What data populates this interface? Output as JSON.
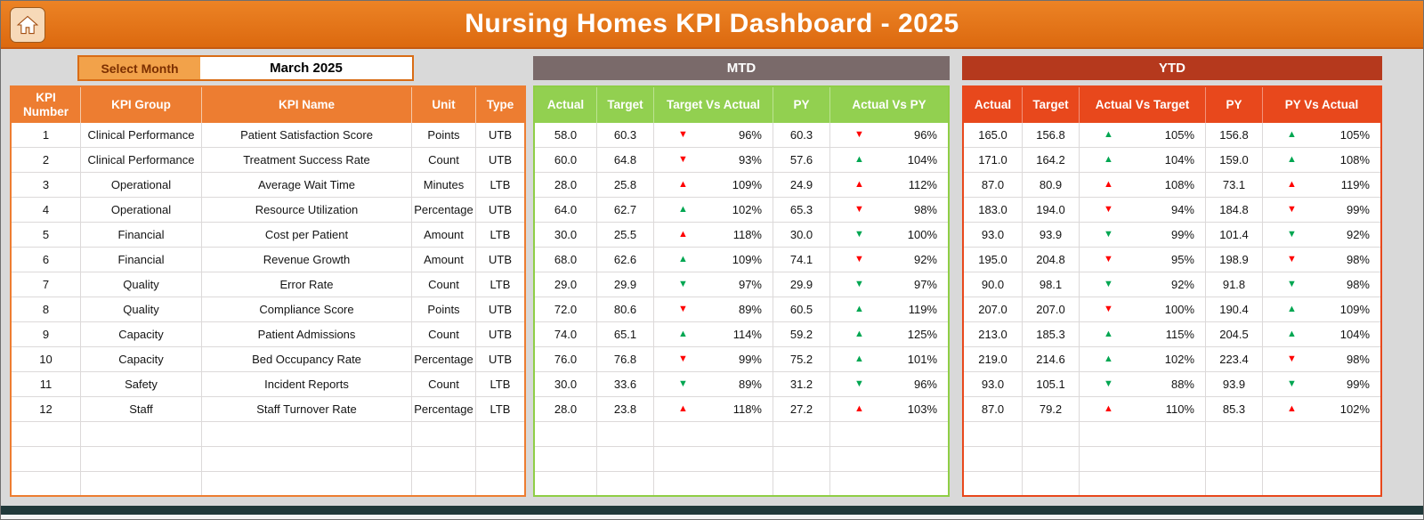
{
  "titlebar": {
    "title": "Nursing Homes KPI Dashboard - 2025"
  },
  "controls": {
    "select_month_label": "Select Month",
    "month_value": "March 2025"
  },
  "left_table": {
    "headers": [
      "KPI Number",
      "KPI Group",
      "KPI Name",
      "Unit",
      "Type"
    ]
  },
  "mtd": {
    "band": "MTD",
    "headers": [
      "Actual",
      "Target",
      "Target Vs Actual",
      "PY",
      "Actual Vs PY"
    ]
  },
  "ytd": {
    "band": "YTD",
    "headers": [
      "Actual",
      "Target",
      "Actual Vs Target",
      "PY",
      "PY Vs Actual"
    ]
  },
  "empty_rows": 3,
  "colors": {
    "titlebar_orange": "#E2701A",
    "header_orange": "#ED7D31",
    "mtd_band": "#7A6A6A",
    "mtd_header_green": "#92D050",
    "ytd_band": "#B5391D",
    "ytd_header_red": "#E8481C",
    "arrow_green": "#00A651",
    "arrow_red": "#FF0000",
    "background_gray": "#D9D9D9"
  },
  "rows": [
    {
      "n": "1",
      "group": "Clinical Performance",
      "name": "Patient Satisfaction Score",
      "unit": "Points",
      "type": "UTB",
      "mtd": {
        "actual": "58.0",
        "target": "60.3",
        "tva": {
          "d": "down",
          "c": "red",
          "p": "96%"
        },
        "py": "60.3",
        "avp": {
          "d": "down",
          "c": "red",
          "p": "96%"
        }
      },
      "ytd": {
        "actual": "165.0",
        "target": "156.8",
        "avt": {
          "d": "up",
          "c": "green",
          "p": "105%"
        },
        "py": "156.8",
        "pva": {
          "d": "up",
          "c": "green",
          "p": "105%"
        }
      }
    },
    {
      "n": "2",
      "group": "Clinical Performance",
      "name": "Treatment Success Rate",
      "unit": "Count",
      "type": "UTB",
      "mtd": {
        "actual": "60.0",
        "target": "64.8",
        "tva": {
          "d": "down",
          "c": "red",
          "p": "93%"
        },
        "py": "57.6",
        "avp": {
          "d": "up",
          "c": "green",
          "p": "104%"
        }
      },
      "ytd": {
        "actual": "171.0",
        "target": "164.2",
        "avt": {
          "d": "up",
          "c": "green",
          "p": "104%"
        },
        "py": "159.0",
        "pva": {
          "d": "up",
          "c": "green",
          "p": "108%"
        }
      }
    },
    {
      "n": "3",
      "group": "Operational",
      "name": "Average Wait Time",
      "unit": "Minutes",
      "type": "LTB",
      "mtd": {
        "actual": "28.0",
        "target": "25.8",
        "tva": {
          "d": "up",
          "c": "red",
          "p": "109%"
        },
        "py": "24.9",
        "avp": {
          "d": "up",
          "c": "red",
          "p": "112%"
        }
      },
      "ytd": {
        "actual": "87.0",
        "target": "80.9",
        "avt": {
          "d": "up",
          "c": "red",
          "p": "108%"
        },
        "py": "73.1",
        "pva": {
          "d": "up",
          "c": "red",
          "p": "119%"
        }
      }
    },
    {
      "n": "4",
      "group": "Operational",
      "name": "Resource Utilization",
      "unit": "Percentage",
      "type": "UTB",
      "mtd": {
        "actual": "64.0",
        "target": "62.7",
        "tva": {
          "d": "up",
          "c": "green",
          "p": "102%"
        },
        "py": "65.3",
        "avp": {
          "d": "down",
          "c": "red",
          "p": "98%"
        }
      },
      "ytd": {
        "actual": "183.0",
        "target": "194.0",
        "avt": {
          "d": "down",
          "c": "red",
          "p": "94%"
        },
        "py": "184.8",
        "pva": {
          "d": "down",
          "c": "red",
          "p": "99%"
        }
      }
    },
    {
      "n": "5",
      "group": "Financial",
      "name": "Cost per Patient",
      "unit": "Amount",
      "type": "LTB",
      "mtd": {
        "actual": "30.0",
        "target": "25.5",
        "tva": {
          "d": "up",
          "c": "red",
          "p": "118%"
        },
        "py": "30.0",
        "avp": {
          "d": "down",
          "c": "green",
          "p": "100%"
        }
      },
      "ytd": {
        "actual": "93.0",
        "target": "93.9",
        "avt": {
          "d": "down",
          "c": "green",
          "p": "99%"
        },
        "py": "101.4",
        "pva": {
          "d": "down",
          "c": "green",
          "p": "92%"
        }
      }
    },
    {
      "n": "6",
      "group": "Financial",
      "name": "Revenue Growth",
      "unit": "Amount",
      "type": "UTB",
      "mtd": {
        "actual": "68.0",
        "target": "62.6",
        "tva": {
          "d": "up",
          "c": "green",
          "p": "109%"
        },
        "py": "74.1",
        "avp": {
          "d": "down",
          "c": "red",
          "p": "92%"
        }
      },
      "ytd": {
        "actual": "195.0",
        "target": "204.8",
        "avt": {
          "d": "down",
          "c": "red",
          "p": "95%"
        },
        "py": "198.9",
        "pva": {
          "d": "down",
          "c": "red",
          "p": "98%"
        }
      }
    },
    {
      "n": "7",
      "group": "Quality",
      "name": "Error Rate",
      "unit": "Count",
      "type": "LTB",
      "mtd": {
        "actual": "29.0",
        "target": "29.9",
        "tva": {
          "d": "down",
          "c": "green",
          "p": "97%"
        },
        "py": "29.9",
        "avp": {
          "d": "down",
          "c": "green",
          "p": "97%"
        }
      },
      "ytd": {
        "actual": "90.0",
        "target": "98.1",
        "avt": {
          "d": "down",
          "c": "green",
          "p": "92%"
        },
        "py": "91.8",
        "pva": {
          "d": "down",
          "c": "green",
          "p": "98%"
        }
      }
    },
    {
      "n": "8",
      "group": "Quality",
      "name": "Compliance Score",
      "unit": "Points",
      "type": "UTB",
      "mtd": {
        "actual": "72.0",
        "target": "80.6",
        "tva": {
          "d": "down",
          "c": "red",
          "p": "89%"
        },
        "py": "60.5",
        "avp": {
          "d": "up",
          "c": "green",
          "p": "119%"
        }
      },
      "ytd": {
        "actual": "207.0",
        "target": "207.0",
        "avt": {
          "d": "down",
          "c": "red",
          "p": "100%"
        },
        "py": "190.4",
        "pva": {
          "d": "up",
          "c": "green",
          "p": "109%"
        }
      }
    },
    {
      "n": "9",
      "group": "Capacity",
      "name": "Patient Admissions",
      "unit": "Count",
      "type": "UTB",
      "mtd": {
        "actual": "74.0",
        "target": "65.1",
        "tva": {
          "d": "up",
          "c": "green",
          "p": "114%"
        },
        "py": "59.2",
        "avp": {
          "d": "up",
          "c": "green",
          "p": "125%"
        }
      },
      "ytd": {
        "actual": "213.0",
        "target": "185.3",
        "avt": {
          "d": "up",
          "c": "green",
          "p": "115%"
        },
        "py": "204.5",
        "pva": {
          "d": "up",
          "c": "green",
          "p": "104%"
        }
      }
    },
    {
      "n": "10",
      "group": "Capacity",
      "name": "Bed Occupancy Rate",
      "unit": "Percentage",
      "type": "UTB",
      "mtd": {
        "actual": "76.0",
        "target": "76.8",
        "tva": {
          "d": "down",
          "c": "red",
          "p": "99%"
        },
        "py": "75.2",
        "avp": {
          "d": "up",
          "c": "green",
          "p": "101%"
        }
      },
      "ytd": {
        "actual": "219.0",
        "target": "214.6",
        "avt": {
          "d": "up",
          "c": "green",
          "p": "102%"
        },
        "py": "223.4",
        "pva": {
          "d": "down",
          "c": "red",
          "p": "98%"
        }
      }
    },
    {
      "n": "11",
      "group": "Safety",
      "name": "Incident Reports",
      "unit": "Count",
      "type": "LTB",
      "mtd": {
        "actual": "30.0",
        "target": "33.6",
        "tva": {
          "d": "down",
          "c": "green",
          "p": "89%"
        },
        "py": "31.2",
        "avp": {
          "d": "down",
          "c": "green",
          "p": "96%"
        }
      },
      "ytd": {
        "actual": "93.0",
        "target": "105.1",
        "avt": {
          "d": "down",
          "c": "green",
          "p": "88%"
        },
        "py": "93.9",
        "pva": {
          "d": "down",
          "c": "green",
          "p": "99%"
        }
      }
    },
    {
      "n": "12",
      "group": "Staff",
      "name": "Staff Turnover Rate",
      "unit": "Percentage",
      "type": "LTB",
      "mtd": {
        "actual": "28.0",
        "target": "23.8",
        "tva": {
          "d": "up",
          "c": "red",
          "p": "118%"
        },
        "py": "27.2",
        "avp": {
          "d": "up",
          "c": "red",
          "p": "103%"
        }
      },
      "ytd": {
        "actual": "87.0",
        "target": "79.2",
        "avt": {
          "d": "up",
          "c": "red",
          "p": "110%"
        },
        "py": "85.3",
        "pva": {
          "d": "up",
          "c": "red",
          "p": "102%"
        }
      }
    }
  ]
}
